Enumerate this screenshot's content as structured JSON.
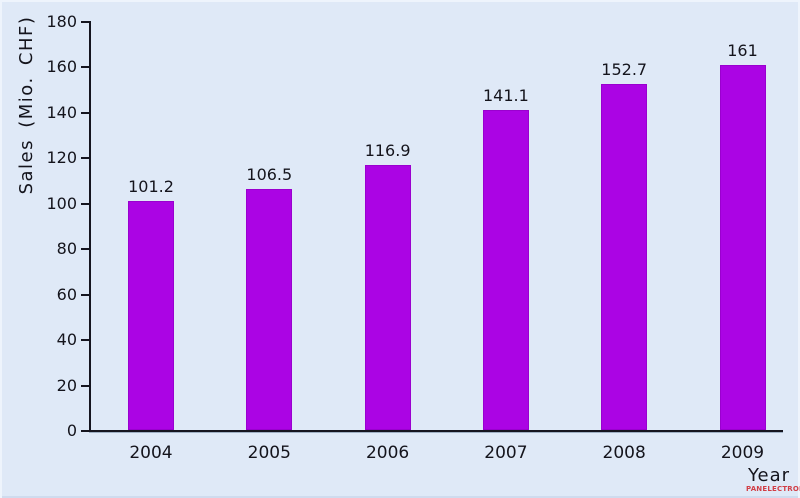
{
  "chart_data": {
    "type": "bar",
    "title": "",
    "categories": [
      "2004",
      "2005",
      "2006",
      "2007",
      "2008",
      "2009"
    ],
    "values": [
      101.2,
      106.5,
      116.9,
      141.1,
      152.7,
      161
    ],
    "value_labels": [
      "101.2",
      "106.5",
      "116.9",
      "141.1",
      "152.7",
      "161"
    ],
    "xlabel": "Year",
    "ylabel": "Sales (Mio. CHF)",
    "ylim": [
      0,
      180
    ],
    "yticks": [
      0,
      20,
      40,
      60,
      80,
      100,
      120,
      140,
      160,
      180
    ],
    "grid": "off",
    "legend": "none",
    "bar_color": "#ab04e4",
    "bar_border_color": "#9a00cf"
  },
  "colors": {
    "background": "#dfe9f7",
    "axis": "#15151f",
    "text": "#14141c",
    "watermark_red": "#cf2128"
  },
  "watermark": {
    "text": "PANELECTRON"
  }
}
